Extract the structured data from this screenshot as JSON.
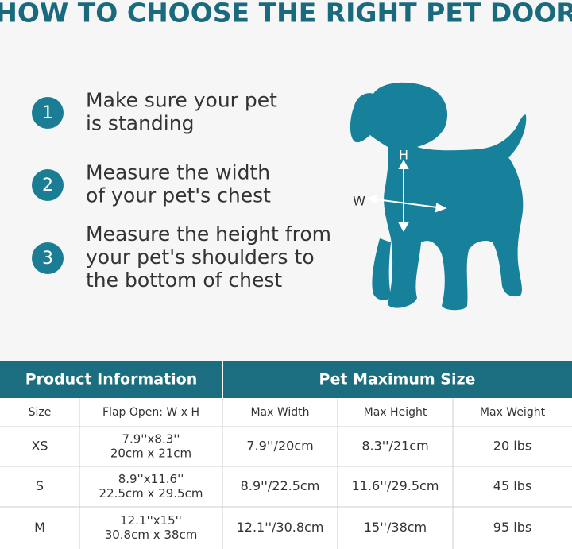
{
  "title": "HOW TO CHOOSE THE RIGHT PET DOOR",
  "steps": [
    {
      "number": "1",
      "lines": [
        "Make sure your pet",
        "is standing"
      ]
    },
    {
      "number": "2",
      "lines": [
        "Measure the width",
        "of your pet's chest"
      ]
    },
    {
      "number": "3",
      "lines": [
        "Measure the height from",
        "your pet's shoulders to",
        "the bottom of chest"
      ]
    }
  ],
  "diagram": {
    "height_label": "H",
    "width_label": "W"
  },
  "table": {
    "groups": [
      "Product Information",
      "Pet Maximum Size"
    ],
    "columns": [
      "Size",
      "Flap Open: W x H",
      "Max Width",
      "Max Height",
      "Max Weight"
    ],
    "rows": [
      [
        [
          "XS"
        ],
        [
          "7.9''x8.3''",
          "20cm x 21cm"
        ],
        [
          "7.9''/20cm"
        ],
        [
          "8.3''/21cm"
        ],
        [
          "20 lbs"
        ]
      ],
      [
        [
          "S"
        ],
        [
          "8.9''x11.6''",
          "22.5cm x 29.5cm"
        ],
        [
          "8.9''/22.5cm"
        ],
        [
          "11.6''/29.5cm"
        ],
        [
          "45 lbs"
        ]
      ],
      [
        [
          "M"
        ],
        [
          "12.1''x15''",
          "30.8cm x 38cm"
        ],
        [
          "12.1''/30.8cm"
        ],
        [
          "15''/38cm"
        ],
        [
          "95 lbs"
        ]
      ]
    ]
  }
}
